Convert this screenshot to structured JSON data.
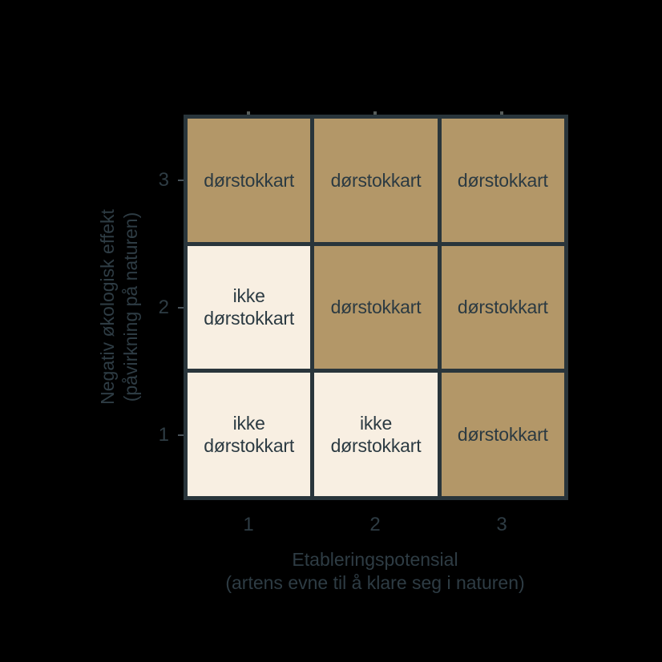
{
  "canvas": {
    "background": "#000000"
  },
  "colors": {
    "dorstokkart_fill": "#b39768",
    "ikke_dorstokkart_fill": "#f8efe2",
    "grid_line": "#29353b",
    "text": "#2e3c44",
    "cell_text": "#2b3a42"
  },
  "chart_data": {
    "type": "heatmap",
    "title": "",
    "x_axis": {
      "title_line1": "Etableringspotensial",
      "title_line2": "(artens evne til å klare seg i naturen)",
      "tick_labels": [
        "1",
        "2",
        "3"
      ]
    },
    "y_axis": {
      "title_line1": "Negativ økologisk effekt",
      "title_line2": "(påvirkning på naturen)",
      "tick_labels_top_to_bottom": [
        "3",
        "2",
        "1"
      ]
    },
    "legend": null,
    "rows_top_to_bottom": [
      {
        "y": "3",
        "cells": [
          {
            "x": "1",
            "label": "dørstokkart",
            "variant": "dorstokkart"
          },
          {
            "x": "2",
            "label": "dørstokkart",
            "variant": "dorstokkart"
          },
          {
            "x": "3",
            "label": "dørstokkart",
            "variant": "dorstokkart"
          }
        ]
      },
      {
        "y": "2",
        "cells": [
          {
            "x": "1",
            "label": "ikke\ndørstokkart",
            "variant": "ikke-dorstokkart"
          },
          {
            "x": "2",
            "label": "dørstokkart",
            "variant": "dorstokkart"
          },
          {
            "x": "3",
            "label": "dørstokkart",
            "variant": "dorstokkart"
          }
        ]
      },
      {
        "y": "1",
        "cells": [
          {
            "x": "1",
            "label": "ikke\ndørstokkart",
            "variant": "ikke-dorstokkart"
          },
          {
            "x": "2",
            "label": "ikke\ndørstokkart",
            "variant": "ikke-dorstokkart"
          },
          {
            "x": "3",
            "label": "dørstokkart",
            "variant": "dorstokkart"
          }
        ]
      }
    ]
  }
}
